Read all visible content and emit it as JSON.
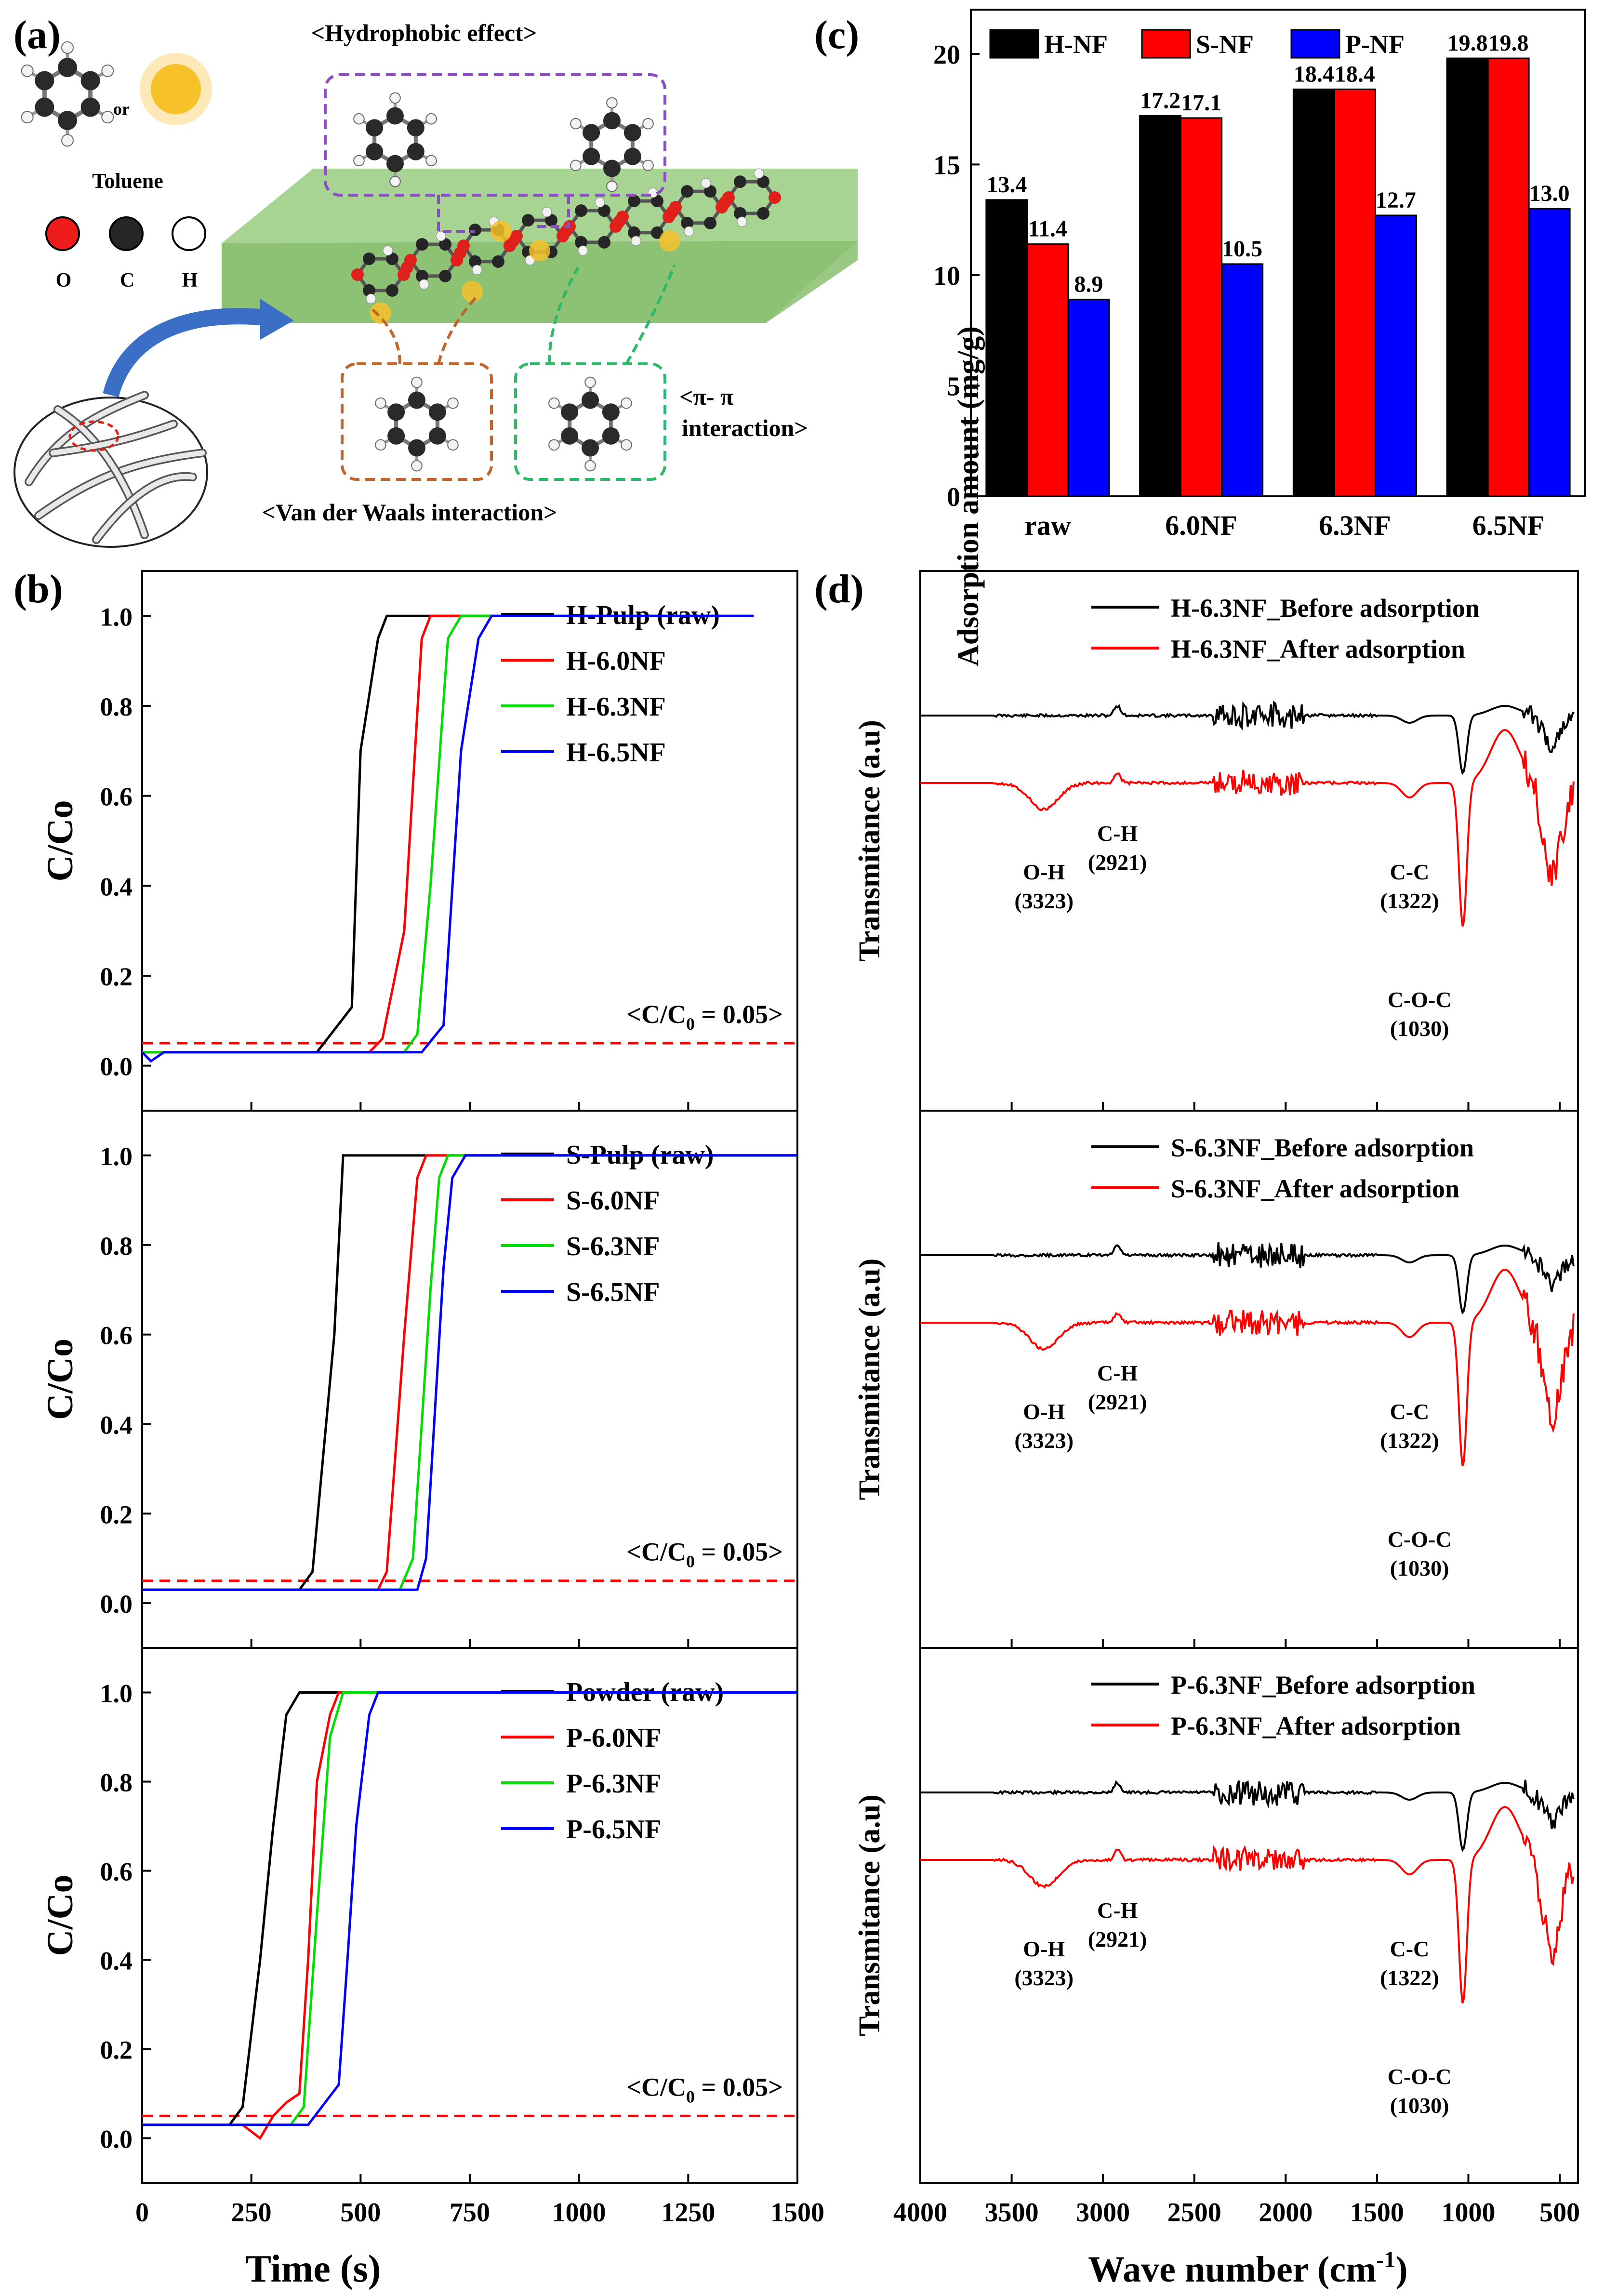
{
  "panel_labels": {
    "a": "(a)",
    "b": "(b)",
    "c": "(c)",
    "d": "(d)"
  },
  "schematic": {
    "hydrophobic": "<Hydrophobic effect>",
    "or": "or",
    "toluene": "Toluene",
    "atoms": [
      "O",
      "C",
      "H"
    ],
    "pi_line1": "<π- π",
    "pi_line2": "interaction>",
    "vdw": "<Van der Waals interaction>",
    "colors": {
      "slab": "#a3cf8c",
      "arrow": "#3b6fc6",
      "purple": "#8a4fc4",
      "orange": "#c0662a",
      "green": "#2eb86a",
      "oxygen": "#e0201a",
      "carbon": "#262626",
      "sun": "#f7c12a"
    }
  },
  "chart_data": [
    {
      "id": "c",
      "type": "bar",
      "title": "",
      "xlabel": "",
      "ylabel": "Adsorption amount (mg/g)",
      "ylim": [
        0,
        22
      ],
      "yticks": [
        0,
        5,
        10,
        15,
        20
      ],
      "categories": [
        "raw",
        "6.0NF",
        "6.3NF",
        "6.5NF"
      ],
      "legend_position": "top-left",
      "series": [
        {
          "name": "H-NF",
          "color": "#000000",
          "values": [
            13.4,
            17.2,
            18.4,
            19.8
          ],
          "labels": [
            "13.4",
            "17.2",
            "18.4",
            "19.8"
          ]
        },
        {
          "name": "S-NF",
          "color": "#ff0000",
          "values": [
            11.4,
            17.1,
            18.4,
            19.8
          ],
          "labels": [
            "11.4",
            "17.1",
            "18.4",
            "19.8"
          ]
        },
        {
          "name": "P-NF",
          "color": "#0000ff",
          "values": [
            8.9,
            10.5,
            12.7,
            13.0
          ],
          "labels": [
            "8.9",
            "10.5",
            "12.7",
            "13.0"
          ]
        }
      ]
    },
    {
      "id": "b",
      "type": "line",
      "xlabel": "Time (s)",
      "ylabel": "C/Co",
      "xlim": [
        0,
        1500
      ],
      "ylim": [
        -0.1,
        1.1
      ],
      "xticks": [
        0,
        250,
        500,
        750,
        1000,
        1250,
        1500
      ],
      "yticks": [
        0.0,
        0.2,
        0.4,
        0.6,
        0.8,
        1.0
      ],
      "threshold": {
        "y": 0.05,
        "label_prefix": "<C/C",
        "label_sub": "0",
        "label_suffix": " = 0.05>",
        "color": "#ff0000"
      },
      "subplots": [
        {
          "series": [
            {
              "name": "H-Pulp (raw)",
              "color": "#000000",
              "x": [
                0,
                20,
                60,
                100,
                200,
                300,
                400,
                480,
                500,
                540,
                560,
                580,
                1400
              ],
              "y": [
                0.03,
                0.03,
                0.03,
                0.03,
                0.03,
                0.03,
                0.03,
                0.13,
                0.7,
                0.95,
                1.0,
                1.0,
                1.0
              ]
            },
            {
              "name": "H-6.0NF",
              "color": "#ff0000",
              "x": [
                0,
                100,
                300,
                520,
                550,
                600,
                640,
                660,
                680,
                700,
                740
              ],
              "y": [
                0.03,
                0.03,
                0.03,
                0.03,
                0.06,
                0.3,
                0.95,
                1.0,
                1.0,
                1.0,
                1.0
              ]
            },
            {
              "name": "H-6.3NF",
              "color": "#00dd00",
              "x": [
                0,
                100,
                300,
                600,
                630,
                660,
                700,
                730,
                760,
                800
              ],
              "y": [
                0.03,
                0.03,
                0.03,
                0.03,
                0.07,
                0.4,
                0.95,
                1.0,
                1.0,
                1.0
              ]
            },
            {
              "name": "H-6.5NF",
              "color": "#0000ff",
              "x": [
                0,
                20,
                50,
                100,
                300,
                600,
                640,
                690,
                730,
                770,
                800,
                850,
                1400
              ],
              "y": [
                0.03,
                0.01,
                0.03,
                0.03,
                0.03,
                0.03,
                0.03,
                0.09,
                0.7,
                0.95,
                1.0,
                1.0,
                1.0
              ]
            }
          ]
        },
        {
          "series": [
            {
              "name": "S-Pulp (raw)",
              "color": "#000000",
              "x": [
                0,
                100,
                300,
                360,
                390,
                440,
                460,
                500,
                1500
              ],
              "y": [
                0.03,
                0.03,
                0.03,
                0.03,
                0.07,
                0.6,
                1.0,
                1.0,
                1.0
              ]
            },
            {
              "name": "S-6.0NF",
              "color": "#ff0000",
              "x": [
                0,
                200,
                400,
                540,
                560,
                600,
                630,
                650,
                700,
                1500
              ],
              "y": [
                0.03,
                0.03,
                0.03,
                0.03,
                0.07,
                0.6,
                0.95,
                1.0,
                1.0,
                1.0
              ]
            },
            {
              "name": "S-6.3NF",
              "color": "#00dd00",
              "x": [
                0,
                200,
                400,
                590,
                620,
                660,
                680,
                700,
                750,
                1500
              ],
              "y": [
                0.03,
                0.03,
                0.03,
                0.03,
                0.1,
                0.7,
                0.95,
                1.0,
                1.0,
                1.0
              ]
            },
            {
              "name": "S-6.5NF",
              "color": "#0000ff",
              "x": [
                0,
                200,
                400,
                630,
                650,
                690,
                710,
                740,
                800,
                1500
              ],
              "y": [
                0.03,
                0.03,
                0.03,
                0.03,
                0.1,
                0.75,
                0.95,
                1.0,
                1.0,
                1.0
              ]
            }
          ]
        },
        {
          "series": [
            {
              "name": "Powder (raw)",
              "color": "#000000",
              "x": [
                0,
                100,
                200,
                230,
                270,
                300,
                330,
                360,
                380,
                1500
              ],
              "y": [
                0.03,
                0.03,
                0.03,
                0.07,
                0.4,
                0.7,
                0.95,
                1.0,
                1.0,
                1.0
              ]
            },
            {
              "name": "P-6.0NF",
              "color": "#ff0000",
              "x": [
                0,
                100,
                230,
                270,
                300,
                330,
                360,
                380,
                400,
                430,
                450,
                1500
              ],
              "y": [
                0.03,
                0.03,
                0.03,
                0.0,
                0.05,
                0.08,
                0.1,
                0.4,
                0.8,
                0.95,
                1.0,
                1.0
              ]
            },
            {
              "name": "P-6.3NF",
              "color": "#00dd00",
              "x": [
                0,
                100,
                300,
                340,
                370,
                400,
                430,
                460,
                480,
                1500
              ],
              "y": [
                0.03,
                0.03,
                0.03,
                0.03,
                0.07,
                0.5,
                0.9,
                1.0,
                1.0,
                1.0
              ]
            },
            {
              "name": "P-6.5NF",
              "color": "#0000ff",
              "x": [
                0,
                100,
                300,
                380,
                450,
                470,
                490,
                520,
                540,
                570,
                1500
              ],
              "y": [
                0.03,
                0.03,
                0.03,
                0.03,
                0.12,
                0.4,
                0.7,
                0.95,
                1.0,
                1.0,
                1.0
              ]
            }
          ]
        }
      ]
    },
    {
      "id": "d",
      "type": "line",
      "xlabel": "Wave number (cm",
      "xlabel_sup": "-1",
      "xlabel_end": ")",
      "ylabel": "Transmitance (a.u)",
      "xlim": [
        4000,
        400
      ],
      "xticks": [
        4000,
        3500,
        3000,
        2500,
        2000,
        1500,
        1000,
        500
      ],
      "subplots": [
        {
          "legend": [
            {
              "name": "H-6.3NF_Before adsorption",
              "color": "#000000"
            },
            {
              "name": "H-6.3NF_After adsorption",
              "color": "#ff0000"
            }
          ],
          "annotations": [
            {
              "group": "O-H",
              "wavenumber": "(3323)"
            },
            {
              "group": "C-H",
              "wavenumber": "(2921)"
            },
            {
              "group": "C-C",
              "wavenumber": "(1322)"
            },
            {
              "group": "C-O-C",
              "wavenumber": "(1030)"
            }
          ]
        },
        {
          "legend": [
            {
              "name": "S-6.3NF_Before adsorption",
              "color": "#000000"
            },
            {
              "name": "S-6.3NF_After adsorption",
              "color": "#ff0000"
            }
          ],
          "annotations": [
            {
              "group": "O-H",
              "wavenumber": "(3323)"
            },
            {
              "group": "C-H",
              "wavenumber": "(2921)"
            },
            {
              "group": "C-C",
              "wavenumber": "(1322)"
            },
            {
              "group": "C-O-C",
              "wavenumber": "(1030)"
            }
          ]
        },
        {
          "legend": [
            {
              "name": "P-6.3NF_Before adsorption",
              "color": "#000000"
            },
            {
              "name": "P-6.3NF_After adsorption",
              "color": "#ff0000"
            }
          ],
          "annotations": [
            {
              "group": "O-H",
              "wavenumber": "(3323)"
            },
            {
              "group": "C-H",
              "wavenumber": "(2921)"
            },
            {
              "group": "C-C",
              "wavenumber": "(1322)"
            },
            {
              "group": "C-O-C",
              "wavenumber": "(1030)"
            }
          ]
        }
      ]
    }
  ]
}
